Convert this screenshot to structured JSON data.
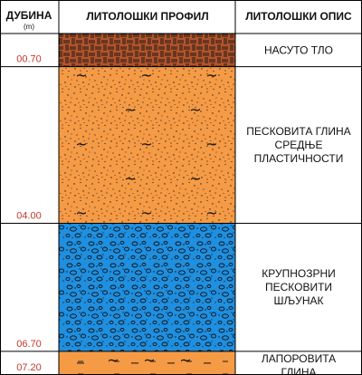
{
  "header": {
    "depth_title": "ДУБИНА",
    "depth_unit": "(m)",
    "profile_title": "ЛИТОЛОШКИ ПРОФИЛ",
    "description_title": "ЛИТОЛОШКИ ОПИС"
  },
  "layers": [
    {
      "id": "fill",
      "bottom_depth_label": "00.70",
      "bottom_depth_m": 0.7,
      "pattern": "hatch",
      "color": "#b5542a",
      "description_lines": [
        "НАСУТО ТЛО"
      ]
    },
    {
      "id": "sandy-clay",
      "bottom_depth_label": "04.00",
      "bottom_depth_m": 4.0,
      "pattern": "sand-tilde",
      "color": "#f59a45",
      "description_lines": [
        "ПЕСКОВИТА ГЛИНА",
        "СРЕДЊЕ",
        "ПЛАСТИЧНОСТИ"
      ]
    },
    {
      "id": "gravel",
      "bottom_depth_label": "06.70",
      "bottom_depth_m": 6.7,
      "pattern": "pebbles",
      "color": "#1f8fe0",
      "description_lines": [
        "КРУПНОЗРНИ",
        "ПЕСКОВИТИ",
        "ШЉУНАК"
      ]
    },
    {
      "id": "marly-clay",
      "bottom_depth_label": "07.20",
      "bottom_depth_m": 7.2,
      "pattern": "dash-tilde",
      "color": "#f59a45",
      "description_lines": [
        "ЛАПОРОВИТА",
        "ГЛИНА"
      ]
    }
  ]
}
